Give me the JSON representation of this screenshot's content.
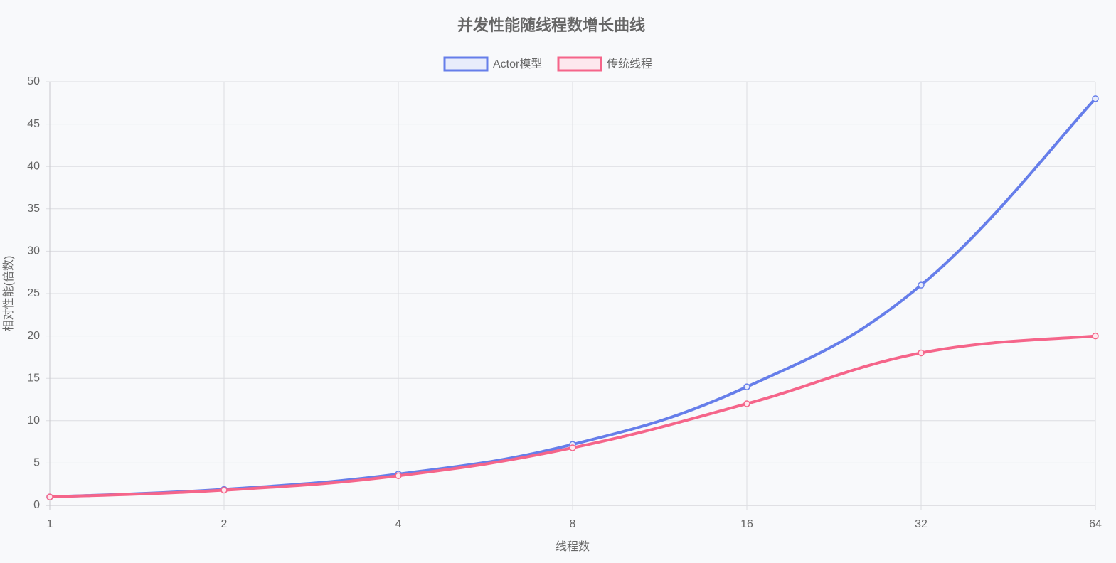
{
  "chart_data": {
    "type": "line",
    "title": "并发性能随线程数增长曲线",
    "x_label": "线程数",
    "y_label": "相对性能(倍数)",
    "categories": [
      "1",
      "2",
      "4",
      "8",
      "16",
      "32",
      "64"
    ],
    "series": [
      {
        "name": "Actor模型",
        "color": "#667eea",
        "fill": "#e8ecfb",
        "values": [
          1,
          1.9,
          3.7,
          7.2,
          14,
          26,
          48
        ]
      },
      {
        "name": "传统线程",
        "color": "#f5658a",
        "fill": "#fde8ee",
        "values": [
          1,
          1.8,
          3.5,
          6.8,
          12,
          18,
          20
        ]
      }
    ],
    "ylim": [
      0,
      50
    ],
    "yticks": [
      0,
      5,
      10,
      15,
      20,
      25,
      30,
      35,
      40,
      45,
      50
    ],
    "grid": true,
    "legend": "top"
  }
}
